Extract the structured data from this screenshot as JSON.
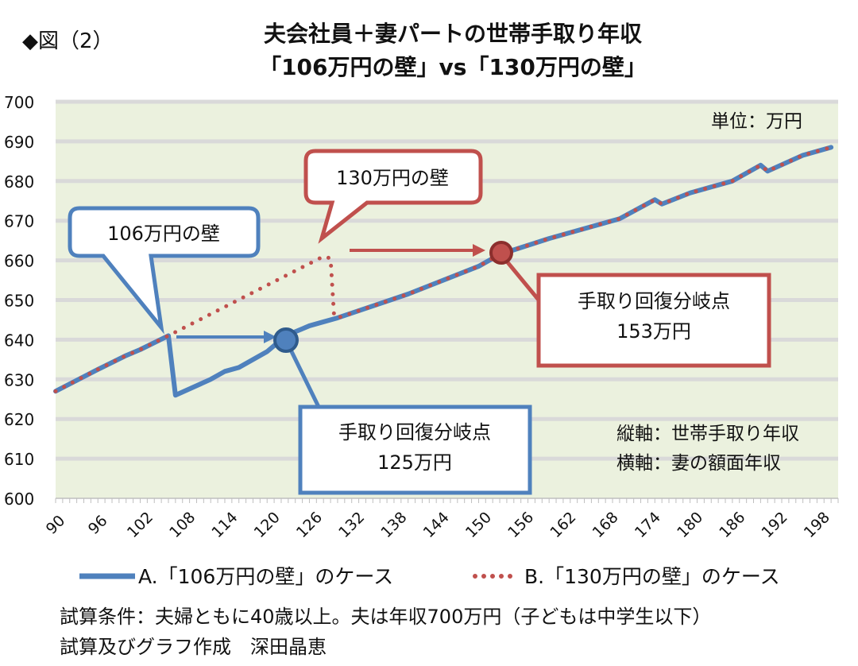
{
  "figure_label": "◆図（2）",
  "chart_data": {
    "type": "line",
    "title": "夫会社員＋妻パートの世帯手取り年収",
    "subtitle": "「106万円の壁」vs「130万円の壁」",
    "unit_note": "単位：万円",
    "ylabel": "縦軸：世帯手取り年収",
    "xlabel": "横軸：妻の額面年収",
    "xlim": [
      90,
      201
    ],
    "ylim": [
      600,
      700
    ],
    "x_ticks": [
      90,
      96,
      102,
      108,
      114,
      120,
      126,
      132,
      138,
      144,
      150,
      156,
      162,
      168,
      174,
      180,
      186,
      192,
      198
    ],
    "y_ticks": [
      600,
      610,
      620,
      630,
      640,
      650,
      660,
      670,
      680,
      690,
      700
    ],
    "grid": true,
    "legend_position": "bottom",
    "colors": {
      "A": "#4f81bd",
      "B": "#c0504d",
      "plot_bg": "#ebf1de",
      "grid": "#d9d9d9"
    },
    "series": [
      {
        "name": "A.「106万円の壁」のケース",
        "style": "solid",
        "x": [
          90,
          96,
          100,
          102,
          106,
          107,
          112,
          114,
          116,
          118,
          120,
          122,
          124,
          126,
          128,
          130,
          140,
          150,
          153,
          160,
          170,
          175,
          176,
          180,
          186,
          190,
          191,
          196,
          198,
          200
        ],
        "y": [
          627,
          632.5,
          636,
          637.5,
          641,
          626,
          630,
          632,
          633,
          635,
          637,
          640,
          642,
          643.5,
          644.5,
          645.5,
          651.5,
          658.5,
          661.5,
          665.5,
          670.5,
          675.3,
          674.2,
          677,
          680,
          684,
          682.5,
          686.5,
          687.5,
          688.5
        ]
      },
      {
        "name": "B.「130万円の壁」のケース",
        "style": "dotted",
        "x": [
          90,
          96,
          100,
          102,
          106,
          128,
          129,
          129.5,
          130,
          140,
          150,
          153,
          160,
          170,
          175,
          176,
          180,
          186,
          190,
          191,
          196,
          198,
          200
        ],
        "y": [
          627,
          632.5,
          636,
          637.5,
          641,
          661,
          660.5,
          646,
          645.5,
          651.5,
          658.5,
          661.5,
          665.5,
          670.5,
          675.3,
          674.2,
          677,
          680,
          684,
          682.5,
          686.5,
          687.5,
          688.5
        ]
      }
    ],
    "annotations": [
      {
        "text": "106万円の壁",
        "x": 106,
        "y": 641
      },
      {
        "text": "130万円の壁",
        "x": 128,
        "y": 661
      },
      {
        "text_line1": "手取り回復分岐点",
        "text_line2": "125万円",
        "x": 122,
        "y": 640
      },
      {
        "text_line1": "手取り回復分岐点",
        "text_line2": "153万円",
        "x": 152,
        "y": 662
      }
    ]
  },
  "footer": {
    "conditions": "試算条件：夫婦ともに40歳以上。夫は年収700万円（子どもは中学生以下）",
    "credit": "試算及びグラフ作成　深田晶恵"
  }
}
